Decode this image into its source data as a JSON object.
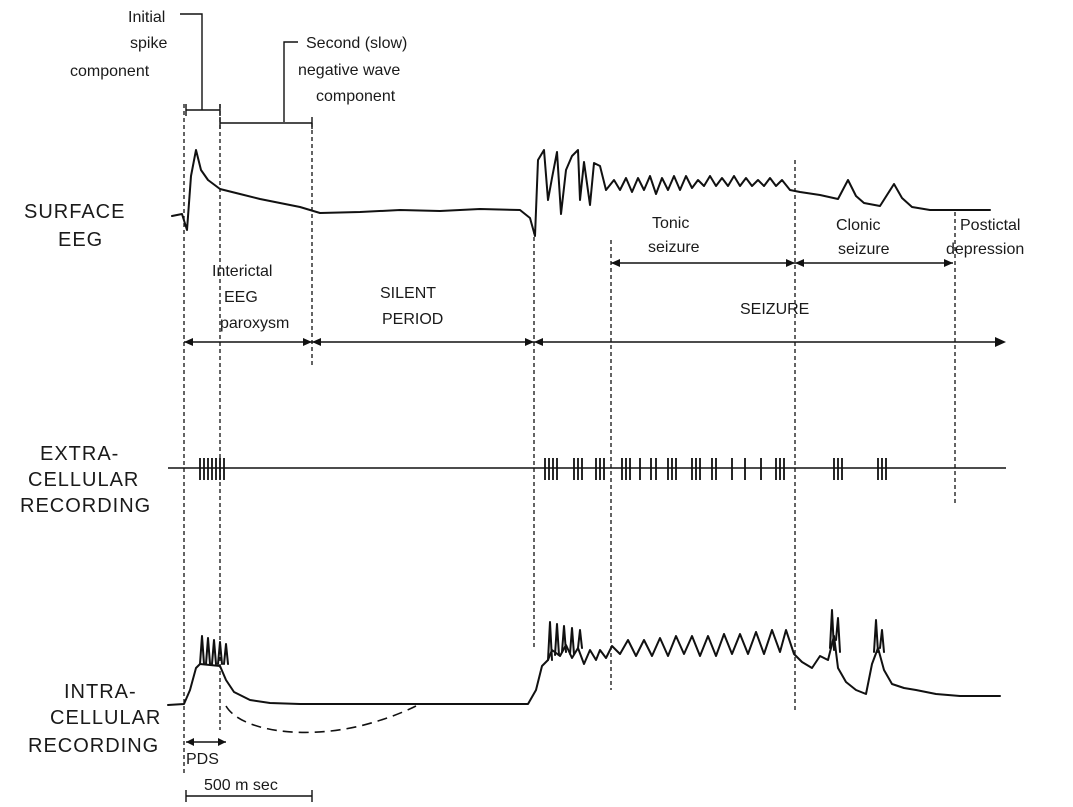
{
  "rows": {
    "surface": [
      "SURFACE",
      "EEG"
    ],
    "extra": [
      "EXTRA-",
      "CELLULAR",
      "RECORDING"
    ],
    "intra": [
      "INTRA-",
      "CELLULAR",
      "RECORDING"
    ]
  },
  "annotations": {
    "initial_spike": [
      "Initial",
      "spike",
      "component"
    ],
    "second_wave": [
      "Second (slow)",
      "negative wave",
      "component"
    ],
    "tonic": [
      "Tonic",
      "seizure"
    ],
    "clonic": [
      "Clonic",
      "seizure"
    ],
    "postictal": [
      "Postictal",
      "depression"
    ]
  },
  "periods": {
    "interictal": [
      "Interictal",
      "EEG",
      "paroxysm"
    ],
    "silent": [
      "SILENT",
      "PERIOD"
    ],
    "seizure": "SEIZURE"
  },
  "scale": {
    "pds": "PDS",
    "time": "500 m sec"
  }
}
